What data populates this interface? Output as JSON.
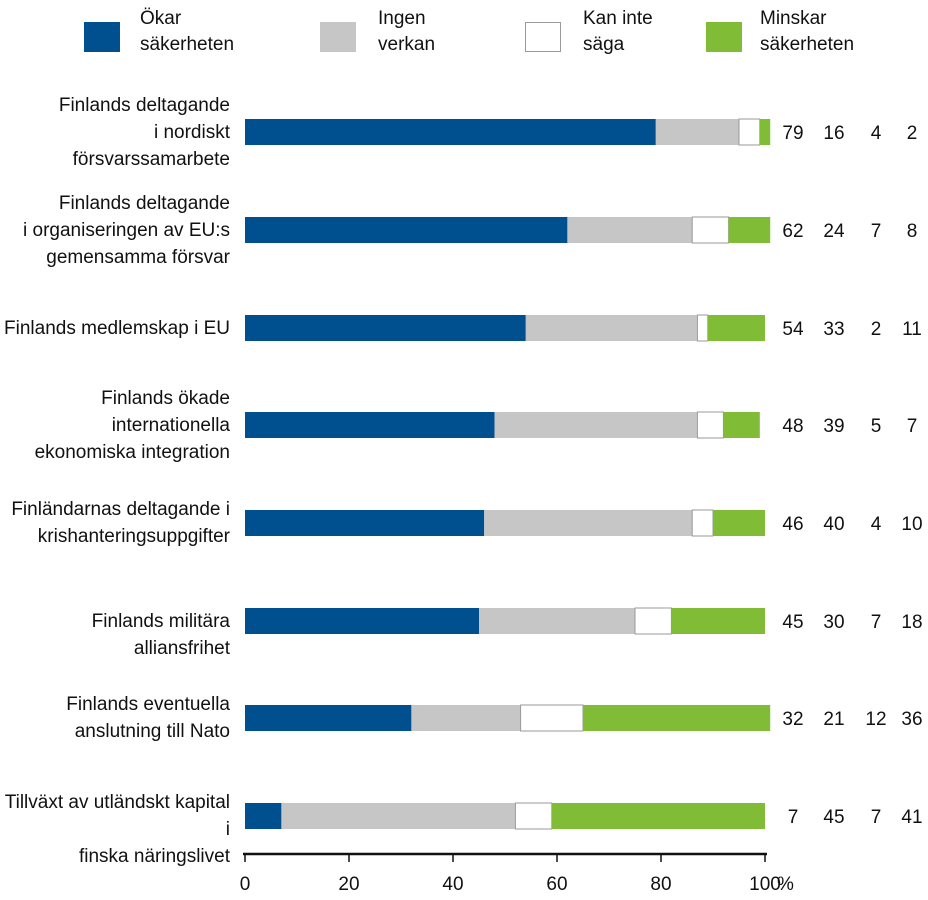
{
  "chart_data": {
    "type": "bar",
    "stacked": true,
    "orientation": "horizontal",
    "unit": "%",
    "xlim": [
      0,
      100
    ],
    "xticks": [
      "0",
      "20",
      "40",
      "60",
      "80",
      "100"
    ],
    "series": [
      {
        "name": "Ökar\nsäkerheten",
        "color": "#00508f",
        "values": [
          79,
          62,
          54,
          48,
          46,
          45,
          32,
          7
        ]
      },
      {
        "name": "Ingen\nverkan",
        "color": "#c6c6c6",
        "values": [
          16,
          24,
          33,
          39,
          40,
          30,
          21,
          45
        ]
      },
      {
        "name": "Kan inte\nsäga",
        "color": "#ffffff",
        "values": [
          4,
          7,
          2,
          5,
          4,
          7,
          12,
          7
        ]
      },
      {
        "name": "Minskar\nsäkerheten",
        "color": "#80bc35",
        "values": [
          2,
          8,
          11,
          7,
          10,
          18,
          36,
          41
        ]
      }
    ],
    "categories": [
      "Finlands deltagande\ni nordiskt\nförsvarssamarbete",
      "Finlands deltagande\ni organiseringen av EU:s\ngemensamma försvar",
      "Finlands medlemskap i EU",
      "Finlands ökade\ninternationella\nekonomiska integration",
      "Finländarnas deltagande i\nkrishanteringsuppgifter",
      "Finlands militära alliansfrihet",
      "Finlands eventuella\nanslutning till Nato",
      "Tillväxt av utländskt kapital i\nfinska näringslivet"
    ]
  }
}
